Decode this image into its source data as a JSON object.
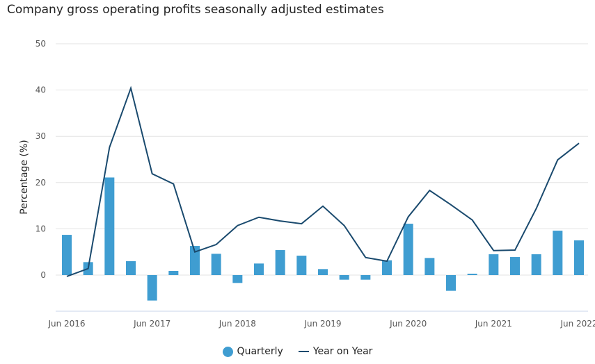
{
  "chart_data": {
    "type": "bar+line",
    "title": "Company gross operating profits seasonally adjusted estimates",
    "ylabel": "Percentage (%)",
    "xlabel": "",
    "ylim": [
      -7,
      50
    ],
    "yticks": [
      0,
      10,
      20,
      30,
      40,
      50
    ],
    "grid": true,
    "legend_position": "bottom",
    "categories": [
      "Jun 2016",
      "Sep 2016",
      "Dec 2016",
      "Mar 2017",
      "Jun 2017",
      "Sep 2017",
      "Dec 2017",
      "Mar 2018",
      "Jun 2018",
      "Sep 2018",
      "Dec 2018",
      "Mar 2019",
      "Jun 2019",
      "Sep 2019",
      "Dec 2019",
      "Mar 2020",
      "Jun 2020",
      "Sep 2020",
      "Dec 2020",
      "Mar 2021",
      "Jun 2021",
      "Sep 2021",
      "Dec 2021",
      "Mar 2022",
      "Jun 2022"
    ],
    "xtick_labels": [
      "Jun 2016",
      "Jun 2017",
      "Jun 2018",
      "Jun 2019",
      "Jun 2020",
      "Jun 2021",
      "Jun 2022"
    ],
    "series": [
      {
        "name": "Quarterly",
        "type": "bar",
        "color": "#3f9dd1",
        "values": [
          8.7,
          2.8,
          21.1,
          3.0,
          -5.5,
          0.9,
          6.3,
          4.6,
          -1.7,
          2.5,
          5.4,
          4.2,
          1.3,
          -1.0,
          -1.0,
          3.2,
          11.1,
          3.7,
          -3.4,
          0.3,
          4.5,
          3.9,
          4.5,
          9.6,
          7.5
        ]
      },
      {
        "name": "Year on Year",
        "type": "line",
        "color": "#1a4a6e",
        "values": [
          -0.3,
          1.4,
          27.6,
          40.4,
          21.9,
          19.7,
          5.0,
          6.6,
          10.7,
          12.5,
          11.7,
          11.1,
          14.9,
          10.7,
          3.8,
          3.0,
          12.6,
          18.3,
          15.2,
          11.9,
          5.3,
          5.4,
          14.4,
          24.9,
          28.5
        ]
      }
    ]
  }
}
